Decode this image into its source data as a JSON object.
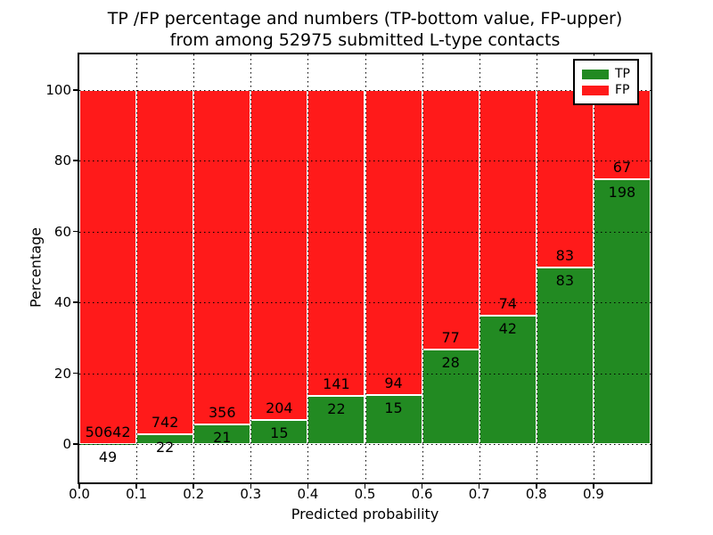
{
  "chart_data": {
    "type": "bar",
    "stacking": "percentage",
    "title_lines": [
      "TP /FP percentage and numbers (TP-bottom value, FP-upper)",
      "from among 52975 submitted L-type contacts"
    ],
    "xlabel": "Predicted probability",
    "ylabel": "Percentage",
    "categories": [
      "0.0-0.1",
      "0.1-0.2",
      "0.2-0.3",
      "0.3-0.4",
      "0.4-0.5",
      "0.5-0.6",
      "0.6-0.7",
      "0.7-0.8",
      "0.8-0.9",
      "0.9-1.0"
    ],
    "x_tick_labels": [
      "0.0",
      "0.1",
      "0.2",
      "0.3",
      "0.4",
      "0.5",
      "0.6",
      "0.7",
      "0.8",
      "0.9"
    ],
    "y_ticks": [
      0,
      20,
      40,
      60,
      80,
      100
    ],
    "xlim": [
      0.0,
      1.0
    ],
    "ylim": [
      -11,
      110
    ],
    "grid": true,
    "series": [
      {
        "name": "TP",
        "color": "#228a22",
        "values": [
          49,
          22,
          21,
          15,
          22,
          15,
          28,
          42,
          83,
          198
        ]
      },
      {
        "name": "FP",
        "color": "#ff1a1a",
        "values": [
          50642,
          742,
          356,
          204,
          141,
          94,
          77,
          74,
          83,
          67
        ]
      }
    ],
    "legend": {
      "position": "upper-right",
      "entries": [
        {
          "label": "TP",
          "color": "#228a22"
        },
        {
          "label": "FP",
          "color": "#ff1a1a"
        }
      ]
    }
  }
}
